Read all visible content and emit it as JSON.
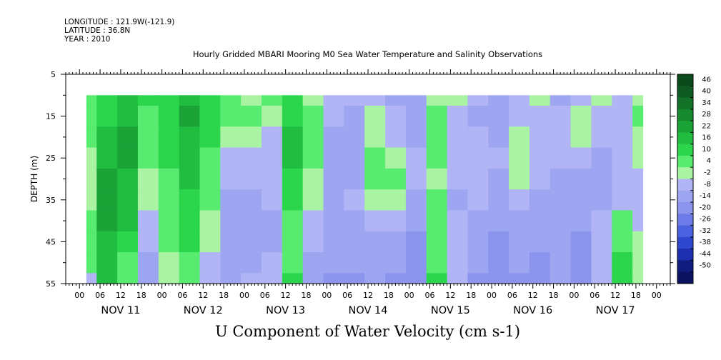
{
  "header": {
    "longitude": "LONGITUDE : 121.9W(-121.9)",
    "latitude": "LATITUDE : 36.8N",
    "year": "YEAR : 2010"
  },
  "chart_data": {
    "type": "heatmap",
    "title": "Hourly Gridded MBARI Mooring M0 Sea Water Temperature and Salinity Observations",
    "variable_title": "U Component of Water Velocity (cm s-1)",
    "ylabel": "DEPTH (m)",
    "y_axis": {
      "range": [
        5,
        55
      ],
      "inverted": true,
      "ticks": [
        5,
        15,
        25,
        35,
        45,
        55
      ],
      "minor_ticks": [
        10,
        20,
        30,
        40,
        50
      ]
    },
    "x_axis": {
      "hour_tick_labels": [
        "00",
        "06",
        "12",
        "18"
      ],
      "day_labels": [
        "NOV 11",
        "NOV 12",
        "NOV 13",
        "NOV 14",
        "NOV 15",
        "NOV 16",
        "NOV 17"
      ],
      "data_start_hour": 2,
      "data_end_hour": 164
    },
    "data_depth_range": [
      10,
      55
    ],
    "colorbar": {
      "labels": [
        "46",
        "40",
        "34",
        "28",
        "22",
        "16",
        "10",
        "4",
        "-2",
        "-8",
        "-14",
        "-20",
        "-26",
        "-32",
        "-38",
        "-44",
        "-50"
      ],
      "levels": [
        {
          "min": 46,
          "max": 52,
          "color": "#0b4a1a"
        },
        {
          "min": 40,
          "max": 46,
          "color": "#0f5a22"
        },
        {
          "min": 34,
          "max": 40,
          "color": "#137128"
        },
        {
          "min": 28,
          "max": 34,
          "color": "#17892f"
        },
        {
          "min": 22,
          "max": 28,
          "color": "#1ba338"
        },
        {
          "min": 16,
          "max": 22,
          "color": "#20bd41"
        },
        {
          "min": 10,
          "max": 16,
          "color": "#2bd64d"
        },
        {
          "min": 4,
          "max": 10,
          "color": "#57ec6f"
        },
        {
          "min": -2,
          "max": 4,
          "color": "#a9f3a2"
        },
        {
          "min": -8,
          "max": -2,
          "color": "#b1b5f5"
        },
        {
          "min": -14,
          "max": -8,
          "color": "#9ea6f2"
        },
        {
          "min": -20,
          "max": -14,
          "color": "#8b95ee"
        },
        {
          "min": -26,
          "max": -20,
          "color": "#6d7ce8"
        },
        {
          "min": -32,
          "max": -26,
          "color": "#4a62e0"
        },
        {
          "min": -38,
          "max": -32,
          "color": "#2f46cf"
        },
        {
          "min": -44,
          "max": -38,
          "color": "#1c2fae"
        },
        {
          "min": -50,
          "max": -44,
          "color": "#101c7e"
        },
        {
          "min": -56,
          "max": -50,
          "color": "#0b1260"
        }
      ]
    },
    "depth_rows": [
      10,
      15,
      20,
      25,
      30,
      35,
      40,
      45,
      50,
      55
    ],
    "time_hours": [
      2,
      8,
      14,
      20,
      26,
      32,
      38,
      44,
      50,
      56,
      62,
      68,
      74,
      80,
      86,
      92,
      98,
      104,
      110,
      116,
      122,
      128,
      134,
      140,
      146,
      152,
      158,
      164
    ],
    "u_values": [
      [
        8,
        12,
        18,
        10,
        12,
        20,
        10,
        8,
        2,
        6,
        14,
        2,
        -4,
        -8,
        -6,
        -10,
        -14,
        2,
        0,
        -8,
        -12,
        -6,
        -2,
        -10,
        -4,
        0,
        -6,
        2
      ],
      [
        8,
        14,
        20,
        8,
        10,
        22,
        12,
        6,
        4,
        2,
        14,
        4,
        -6,
        -12,
        -2,
        -8,
        -12,
        4,
        -4,
        -10,
        -12,
        -4,
        -6,
        -8,
        2,
        -6,
        -4,
        6
      ],
      [
        4,
        18,
        22,
        6,
        12,
        20,
        10,
        2,
        2,
        -4,
        18,
        6,
        -10,
        -14,
        0,
        -6,
        -10,
        6,
        -6,
        -8,
        -10,
        -2,
        -4,
        -4,
        -2,
        -8,
        -6,
        2
      ],
      [
        2,
        20,
        22,
        4,
        10,
        18,
        8,
        -4,
        -6,
        -6,
        16,
        4,
        -12,
        -12,
        4,
        2,
        -8,
        4,
        -6,
        -6,
        -8,
        0,
        -6,
        -8,
        -6,
        -10,
        -4,
        -2
      ],
      [
        0,
        22,
        20,
        2,
        8,
        16,
        6,
        -8,
        -8,
        -4,
        14,
        2,
        -12,
        -10,
        6,
        4,
        -8,
        2,
        -8,
        -6,
        -10,
        -2,
        -8,
        -12,
        -10,
        -12,
        -6,
        -4
      ],
      [
        2,
        22,
        18,
        0,
        6,
        14,
        4,
        -10,
        -10,
        -6,
        10,
        -2,
        -14,
        -8,
        2,
        0,
        -12,
        4,
        -10,
        -8,
        -12,
        -6,
        -10,
        -14,
        -12,
        -10,
        -4,
        -6
      ],
      [
        4,
        22,
        16,
        -4,
        6,
        12,
        2,
        -12,
        -12,
        -10,
        6,
        -6,
        -12,
        -10,
        -4,
        -8,
        -14,
        6,
        -8,
        -10,
        -14,
        -10,
        -12,
        -12,
        -14,
        -8,
        6,
        -4
      ],
      [
        6,
        20,
        12,
        -8,
        4,
        10,
        -2,
        -12,
        -14,
        -10,
        4,
        -8,
        -12,
        -12,
        -10,
        -12,
        -16,
        8,
        -6,
        -12,
        -16,
        -12,
        -14,
        -10,
        -16,
        -6,
        8,
        -2
      ],
      [
        4,
        16,
        8,
        -10,
        2,
        8,
        -4,
        -14,
        -10,
        -8,
        8,
        -10,
        -14,
        -14,
        -12,
        -14,
        -16,
        8,
        -4,
        -14,
        -16,
        -14,
        -16,
        -12,
        -18,
        -4,
        10,
        0
      ],
      [
        -8,
        18,
        6,
        -12,
        -2,
        6,
        -8,
        -12,
        -6,
        -6,
        12,
        -12,
        -18,
        -16,
        -14,
        -16,
        -18,
        10,
        -6,
        -16,
        -18,
        -16,
        -16,
        -14,
        -20,
        -6,
        12,
        2
      ]
    ]
  }
}
